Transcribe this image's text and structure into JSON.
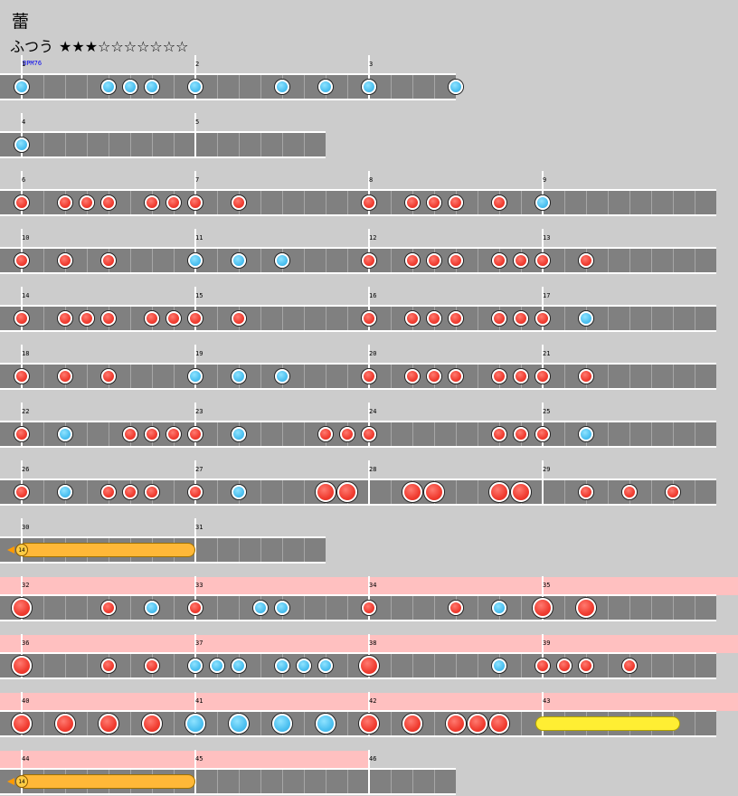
{
  "title": "蕾",
  "difficulty": {
    "label": "ふつう",
    "stars_filled": "★★★",
    "stars_empty": "☆☆☆☆☆☆☆"
  },
  "bpm_label": "BPM76",
  "rows": [
    {
      "measures": [
        1,
        2,
        3
      ],
      "length": 2.5,
      "gogo": false,
      "notes": [
        [
          "d",
          1,
          0
        ],
        [
          "d",
          1,
          4
        ],
        [
          "d",
          1,
          5
        ],
        [
          "d",
          1,
          6
        ],
        [
          "d",
          2,
          0
        ],
        [
          "d",
          2,
          4
        ],
        [
          "d",
          2,
          6
        ],
        [
          "d",
          3,
          0
        ],
        [
          "d",
          3,
          4
        ]
      ]
    },
    {
      "measures": [
        4,
        5
      ],
      "length": 1.75,
      "gogo": false,
      "notes": [
        [
          "d",
          4,
          0
        ]
      ]
    },
    {
      "measures": [
        6,
        7,
        8,
        9
      ],
      "length": 4,
      "gogo": false,
      "notes": [
        [
          "D",
          6,
          0
        ],
        [
          "D",
          6,
          2
        ],
        [
          "D",
          6,
          3
        ],
        [
          "D",
          6,
          4
        ],
        [
          "D",
          6,
          6
        ],
        [
          "D",
          6,
          7
        ],
        [
          "D",
          7,
          0
        ],
        [
          "D",
          7,
          2
        ],
        [
          "D",
          8,
          0
        ],
        [
          "D",
          8,
          2
        ],
        [
          "D",
          8,
          3
        ],
        [
          "D",
          8,
          4
        ],
        [
          "D",
          8,
          6
        ],
        [
          "d",
          9,
          0
        ]
      ]
    },
    {
      "measures": [
        10,
        11,
        12,
        13
      ],
      "length": 4,
      "gogo": false,
      "notes": [
        [
          "D",
          10,
          0
        ],
        [
          "D",
          10,
          2
        ],
        [
          "D",
          10,
          4
        ],
        [
          "d",
          11,
          0
        ],
        [
          "d",
          11,
          2
        ],
        [
          "d",
          11,
          4
        ],
        [
          "D",
          12,
          0
        ],
        [
          "D",
          12,
          2
        ],
        [
          "D",
          12,
          3
        ],
        [
          "D",
          12,
          4
        ],
        [
          "D",
          12,
          6
        ],
        [
          "D",
          12,
          7
        ],
        [
          "D",
          13,
          0
        ],
        [
          "D",
          13,
          2
        ]
      ]
    },
    {
      "measures": [
        14,
        15,
        16,
        17
      ],
      "length": 4,
      "gogo": false,
      "notes": [
        [
          "D",
          14,
          0
        ],
        [
          "D",
          14,
          2
        ],
        [
          "D",
          14,
          3
        ],
        [
          "D",
          14,
          4
        ],
        [
          "D",
          14,
          6
        ],
        [
          "D",
          14,
          7
        ],
        [
          "D",
          15,
          0
        ],
        [
          "D",
          15,
          2
        ],
        [
          "D",
          16,
          0
        ],
        [
          "D",
          16,
          2
        ],
        [
          "D",
          16,
          3
        ],
        [
          "D",
          16,
          4
        ],
        [
          "D",
          16,
          6
        ],
        [
          "D",
          16,
          7
        ],
        [
          "D",
          17,
          0
        ],
        [
          "d",
          17,
          2
        ]
      ]
    },
    {
      "measures": [
        18,
        19,
        20,
        21
      ],
      "length": 4,
      "gogo": false,
      "notes": [
        [
          "D",
          18,
          0
        ],
        [
          "D",
          18,
          2
        ],
        [
          "D",
          18,
          4
        ],
        [
          "d",
          19,
          0
        ],
        [
          "d",
          19,
          2
        ],
        [
          "d",
          19,
          4
        ],
        [
          "D",
          20,
          0
        ],
        [
          "D",
          20,
          2
        ],
        [
          "D",
          20,
          3
        ],
        [
          "D",
          20,
          4
        ],
        [
          "D",
          20,
          6
        ],
        [
          "D",
          20,
          7
        ],
        [
          "D",
          21,
          0
        ],
        [
          "D",
          21,
          2
        ]
      ]
    },
    {
      "measures": [
        22,
        23,
        24,
        25
      ],
      "length": 4,
      "gogo": false,
      "notes": [
        [
          "D",
          22,
          0
        ],
        [
          "d",
          22,
          2
        ],
        [
          "D",
          22,
          5
        ],
        [
          "D",
          22,
          6
        ],
        [
          "D",
          22,
          7
        ],
        [
          "D",
          23,
          0
        ],
        [
          "d",
          23,
          2
        ],
        [
          "D",
          23,
          6
        ],
        [
          "D",
          23,
          7
        ],
        [
          "D",
          24,
          0
        ],
        [
          "D",
          24,
          6
        ],
        [
          "D",
          24,
          7
        ],
        [
          "D",
          25,
          0
        ],
        [
          "d",
          25,
          2
        ]
      ]
    },
    {
      "measures": [
        26,
        27,
        28,
        29
      ],
      "length": 4,
      "gogo": false,
      "notes": [
        [
          "D",
          26,
          0
        ],
        [
          "d",
          26,
          2
        ],
        [
          "D",
          26,
          4
        ],
        [
          "D",
          26,
          5
        ],
        [
          "D",
          26,
          6
        ],
        [
          "D",
          27,
          0
        ],
        [
          "d",
          27,
          2
        ],
        [
          "B",
          27,
          6
        ],
        [
          "B",
          27,
          7
        ],
        [
          "B",
          28,
          2
        ],
        [
          "B",
          28,
          3
        ],
        [
          "B",
          28,
          6
        ],
        [
          "B",
          28,
          7
        ],
        [
          "D",
          29,
          2
        ],
        [
          "D",
          29,
          4
        ],
        [
          "D",
          29,
          6
        ]
      ]
    },
    {
      "measures": [
        30,
        31
      ],
      "length": 1.75,
      "gogo": false,
      "notes": [
        [
          "balloon",
          30,
          0,
          8,
          "14"
        ]
      ]
    },
    {
      "measures": [
        32,
        33,
        34,
        35
      ],
      "length": 4,
      "gogo": true,
      "notes": [
        [
          "B",
          32,
          0
        ],
        [
          "D",
          32,
          4
        ],
        [
          "d",
          32,
          6
        ],
        [
          "D",
          33,
          0
        ],
        [
          "d",
          33,
          3
        ],
        [
          "d",
          33,
          4
        ],
        [
          "D",
          34,
          0
        ],
        [
          "D",
          34,
          4
        ],
        [
          "d",
          34,
          6
        ],
        [
          "B",
          35,
          0
        ],
        [
          "B",
          35,
          2
        ]
      ]
    },
    {
      "measures": [
        36,
        37,
        38,
        39
      ],
      "length": 4,
      "gogo": true,
      "notes": [
        [
          "B",
          36,
          0
        ],
        [
          "D",
          36,
          4
        ],
        [
          "D",
          36,
          6
        ],
        [
          "d",
          37,
          0
        ],
        [
          "d",
          37,
          1
        ],
        [
          "d",
          37,
          2
        ],
        [
          "d",
          37,
          4
        ],
        [
          "d",
          37,
          5
        ],
        [
          "d",
          37,
          6
        ],
        [
          "B",
          38,
          0
        ],
        [
          "d",
          38,
          6
        ],
        [
          "D",
          39,
          0
        ],
        [
          "D",
          39,
          1
        ],
        [
          "D",
          39,
          2
        ],
        [
          "D",
          39,
          4
        ]
      ]
    },
    {
      "measures": [
        40,
        41,
        42,
        43
      ],
      "length": 4,
      "gogo": true,
      "notes": [
        [
          "B",
          40,
          0
        ],
        [
          "B",
          40,
          2
        ],
        [
          "B",
          40,
          4
        ],
        [
          "B",
          40,
          6
        ],
        [
          "K",
          41,
          0
        ],
        [
          "K",
          41,
          2
        ],
        [
          "K",
          41,
          4
        ],
        [
          "K",
          41,
          6
        ],
        [
          "B",
          42,
          0
        ],
        [
          "B",
          42,
          2
        ],
        [
          "B",
          42,
          4
        ],
        [
          "B",
          42,
          5
        ],
        [
          "B",
          42,
          6
        ],
        [
          "bigroll",
          43,
          0,
          6.4
        ]
      ]
    },
    {
      "measures": [
        44,
        45,
        46
      ],
      "length": 2.5,
      "gogo": true,
      "gogo_length": 2,
      "notes": [
        [
          "balloon",
          44,
          0,
          8,
          "14"
        ]
      ]
    }
  ]
}
